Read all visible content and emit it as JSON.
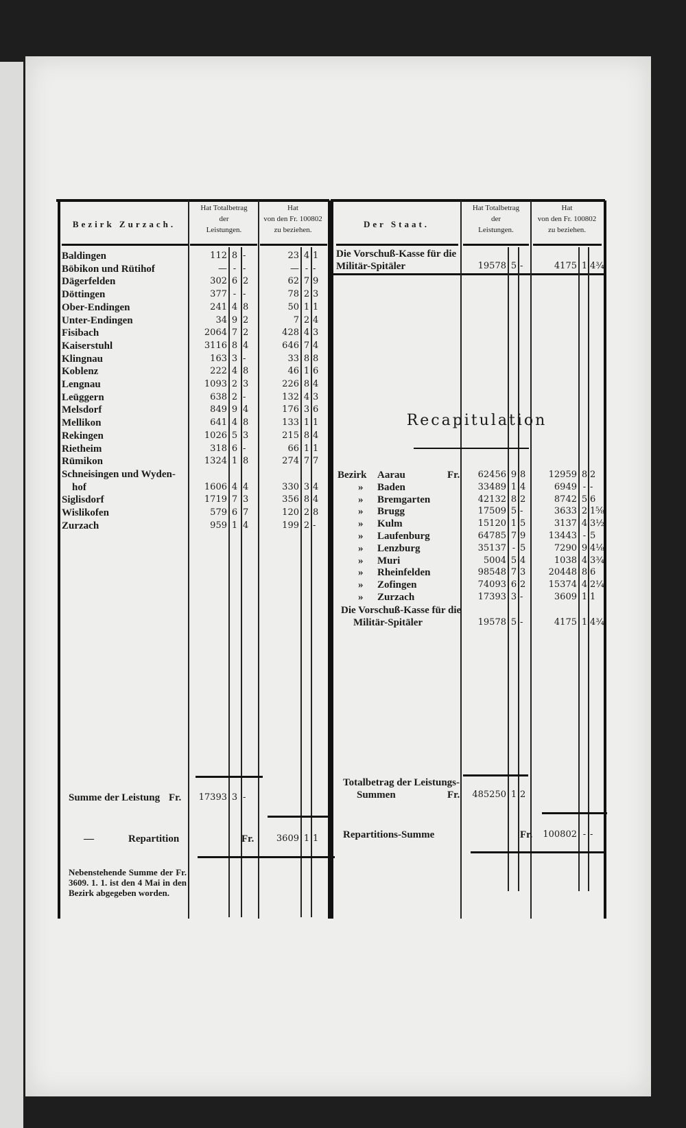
{
  "left_table": {
    "header": {
      "district": "Bezirk Zurzach.",
      "total_col": [
        "Hat Totalbetrag",
        "der",
        "Leistungen."
      ],
      "share_col": [
        "Hat",
        "von den Fr. 100802",
        "zu beziehen."
      ]
    },
    "rows": [
      {
        "name": "Baldingen",
        "total": [
          "112",
          "8",
          "-"
        ],
        "share": [
          "23",
          "4",
          "1"
        ]
      },
      {
        "name": "Böbikon und Rütihof",
        "total": [
          "—",
          "-",
          "-"
        ],
        "share": [
          "—",
          "-",
          "-"
        ]
      },
      {
        "name": "Dägerfelden",
        "total": [
          "302",
          "6",
          "2"
        ],
        "share": [
          "62",
          "7",
          "9"
        ]
      },
      {
        "name": "Döttingen",
        "total": [
          "377",
          "-",
          "-"
        ],
        "share": [
          "78",
          "2",
          "3"
        ]
      },
      {
        "name": "Ober-Endingen",
        "total": [
          "241",
          "4",
          "8"
        ],
        "share": [
          "50",
          "1",
          "1"
        ]
      },
      {
        "name": "Unter-Endingen",
        "total": [
          "34",
          "9",
          "2"
        ],
        "share": [
          "7",
          "2",
          "4"
        ]
      },
      {
        "name": "Fisibach",
        "total": [
          "2064",
          "7",
          "2"
        ],
        "share": [
          "428",
          "4",
          "3"
        ]
      },
      {
        "name": "Kaiserstuhl",
        "total": [
          "3116",
          "8",
          "4"
        ],
        "share": [
          "646",
          "7",
          "4"
        ]
      },
      {
        "name": "Klingnau",
        "total": [
          "163",
          "3",
          "-"
        ],
        "share": [
          "33",
          "8",
          "8"
        ]
      },
      {
        "name": "Koblenz",
        "total": [
          "222",
          "4",
          "8"
        ],
        "share": [
          "46",
          "1",
          "6"
        ]
      },
      {
        "name": "Lengnau",
        "total": [
          "1093",
          "2",
          "3"
        ],
        "share": [
          "226",
          "8",
          "4"
        ]
      },
      {
        "name": "Leüggern",
        "total": [
          "638",
          "2",
          "-"
        ],
        "share": [
          "132",
          "4",
          "3"
        ]
      },
      {
        "name": "Melsdorf",
        "total": [
          "849",
          "9",
          "4"
        ],
        "share": [
          "176",
          "3",
          "6"
        ]
      },
      {
        "name": "Mellikon",
        "total": [
          "641",
          "4",
          "8"
        ],
        "share": [
          "133",
          "1",
          "1"
        ]
      },
      {
        "name": "Rekingen",
        "total": [
          "1026",
          "5",
          "3"
        ],
        "share": [
          "215",
          "8",
          "4"
        ]
      },
      {
        "name": "Rietheim",
        "total": [
          "318",
          "6",
          "-"
        ],
        "share": [
          "66",
          "1",
          "1"
        ]
      },
      {
        "name": "Rümikon",
        "total": [
          "1324",
          "1",
          "8"
        ],
        "share": [
          "274",
          "7",
          "7"
        ]
      },
      {
        "name": "Schneisingen und Wyden-",
        "total": [
          "",
          "",
          ""
        ],
        "share": [
          "",
          "",
          ""
        ]
      },
      {
        "name": "    hof",
        "total": [
          "1606",
          "4",
          "4"
        ],
        "share": [
          "330",
          "3",
          "4"
        ]
      },
      {
        "name": "Siglisdorf",
        "total": [
          "1719",
          "7",
          "3"
        ],
        "share": [
          "356",
          "8",
          "4"
        ]
      },
      {
        "name": "Wislikofen",
        "total": [
          "579",
          "6",
          "7"
        ],
        "share": [
          "120",
          "2",
          "8"
        ]
      },
      {
        "name": "Zurzach",
        "total": [
          "959",
          "1",
          "4"
        ],
        "share": [
          "199",
          "2",
          "-"
        ]
      }
    ],
    "sum": {
      "label": "Summe der Leistung",
      "currency": "Fr.",
      "total": [
        "17393",
        "3",
        "-"
      ]
    },
    "repartition": {
      "dash": "—",
      "label": "Repartition",
      "currency": "Fr.",
      "share": [
        "3609",
        "1",
        "1"
      ]
    },
    "note": "Nebenstehende Summe der Fr. 3609. 1. 1. ist den 4 Mai in den Bezirk abgegeben worden."
  },
  "right_table": {
    "header": {
      "district": "Der Staat.",
      "total_col": [
        "Hat Totalbetrag",
        "der",
        "Leistungen."
      ],
      "share_col": [
        "Hat",
        "von den Fr. 100802",
        "zu beziehen."
      ]
    },
    "state_row": {
      "name": [
        "Die Vorschuß-Kasse für die",
        "Militär-Spitäler"
      ],
      "total": [
        "19578",
        "5",
        "-"
      ],
      "share": [
        "4175",
        "1",
        "4¾"
      ]
    },
    "recap_title": "Recapitulation",
    "recap_rows": [
      {
        "prefix": "Bezirk",
        "name": "Aarau",
        "currency": "Fr.",
        "total": [
          "62456",
          "9",
          "8"
        ],
        "share": [
          "12959",
          "8",
          "2"
        ]
      },
      {
        "prefix": "»",
        "name": "Baden",
        "total": [
          "33489",
          "1",
          "4"
        ],
        "share": [
          "6949",
          "-",
          "-"
        ]
      },
      {
        "prefix": "»",
        "name": "Bremgarten",
        "total": [
          "42132",
          "8",
          "2"
        ],
        "share": [
          "8742",
          "5",
          "6"
        ]
      },
      {
        "prefix": "»",
        "name": "Brugg",
        "total": [
          "17509",
          "5",
          "-"
        ],
        "share": [
          "3633",
          "2",
          "1⅝"
        ]
      },
      {
        "prefix": "»",
        "name": "Kulm",
        "total": [
          "15120",
          "1",
          "5"
        ],
        "share": [
          "3137",
          "4",
          "3½"
        ]
      },
      {
        "prefix": "»",
        "name": "Laufenburg",
        "total": [
          "64785",
          "7",
          "9"
        ],
        "share": [
          "13443",
          "-",
          "5"
        ]
      },
      {
        "prefix": "»",
        "name": "Lenzburg",
        "total": [
          "35137",
          "-",
          "5"
        ],
        "share": [
          "7290",
          "9",
          "4⅛"
        ]
      },
      {
        "prefix": "»",
        "name": "Muri",
        "total": [
          "5004",
          "5",
          "4"
        ],
        "share": [
          "1038",
          "4",
          "3¾"
        ]
      },
      {
        "prefix": "»",
        "name": "Rheinfelden",
        "total": [
          "98548",
          "7",
          "3"
        ],
        "share": [
          "20448",
          "8",
          "6"
        ]
      },
      {
        "prefix": "»",
        "name": "Zofingen",
        "total": [
          "74093",
          "6",
          "2"
        ],
        "share": [
          "15374",
          "4",
          "2¼"
        ]
      },
      {
        "prefix": "»",
        "name": "Zurzach",
        "total": [
          "17393",
          "3",
          "-"
        ],
        "share": [
          "3609",
          "1",
          "1"
        ]
      }
    ],
    "recap_state": {
      "name": [
        "Die Vorschuß-Kasse für die",
        "Militär-Spitäler"
      ],
      "total": [
        "19578",
        "5",
        "-"
      ],
      "share": [
        "4175",
        "1",
        "4¾"
      ]
    },
    "total_sum": {
      "label": [
        "Totalbetrag der Leistungs-",
        "Summen"
      ],
      "currency": "Fr.",
      "total": [
        "485250",
        "1",
        "2"
      ]
    },
    "repartition_sum": {
      "label": "Repartitions-Summe",
      "currency": "Fr.",
      "share": [
        "100802",
        "-",
        "-"
      ]
    }
  }
}
